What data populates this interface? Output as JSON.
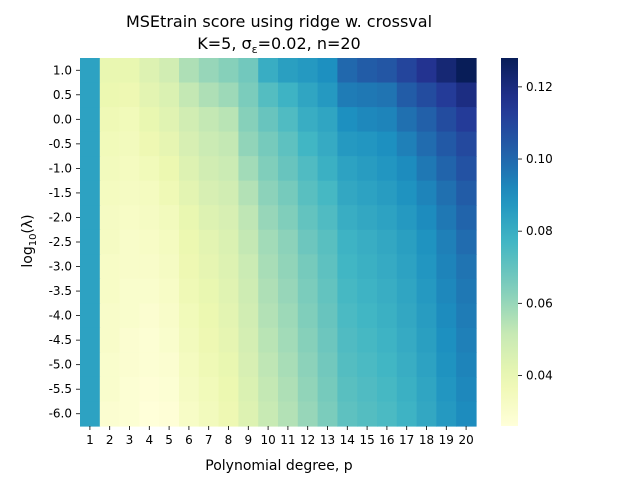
{
  "chart_data": {
    "type": "heatmap",
    "title_line1": "MSEtrain score using ridge w. crossval",
    "title_line2_prefix": "K=5,  σ",
    "title_line2_sub": "ε",
    "title_line2_suffix": "=0.02,  n=20",
    "xlabel": "Polynomial degree, p",
    "ylabel_main": "log",
    "ylabel_sub": "10",
    "ylabel_suffix": "(λ)",
    "x_categories": [
      "1",
      "2",
      "3",
      "4",
      "5",
      "6",
      "7",
      "8",
      "9",
      "10",
      "11",
      "12",
      "13",
      "14",
      "15",
      "16",
      "17",
      "18",
      "19",
      "20"
    ],
    "y_categories": [
      "1.0",
      "0.5",
      "0.0",
      "-0.5",
      "-1.0",
      "-1.5",
      "-2.0",
      "-2.5",
      "-3.0",
      "-3.5",
      "-4.0",
      "-4.5",
      "-5.0",
      "-5.5",
      "-6.0"
    ],
    "colormap": "YlGnBu",
    "vmin": 0.026,
    "vmax": 0.128,
    "colorbar_ticks": [
      "0.04",
      "0.06",
      "0.08",
      "0.10",
      "0.12"
    ],
    "colorbar_tick_values": [
      0.04,
      0.06,
      0.08,
      0.1,
      0.12
    ],
    "values": [
      [
        0.084,
        0.04,
        0.04,
        0.044,
        0.048,
        0.056,
        0.06,
        0.063,
        0.067,
        0.08,
        0.085,
        0.087,
        0.09,
        0.1,
        0.103,
        0.105,
        0.11,
        0.116,
        0.122,
        0.128
      ],
      [
        0.084,
        0.039,
        0.038,
        0.042,
        0.045,
        0.052,
        0.056,
        0.059,
        0.065,
        0.073,
        0.078,
        0.083,
        0.087,
        0.095,
        0.096,
        0.097,
        0.103,
        0.108,
        0.113,
        0.119
      ],
      [
        0.084,
        0.037,
        0.036,
        0.04,
        0.043,
        0.048,
        0.052,
        0.054,
        0.063,
        0.069,
        0.074,
        0.08,
        0.083,
        0.09,
        0.092,
        0.093,
        0.098,
        0.102,
        0.108,
        0.113
      ],
      [
        0.084,
        0.036,
        0.035,
        0.038,
        0.041,
        0.046,
        0.05,
        0.052,
        0.061,
        0.066,
        0.071,
        0.077,
        0.081,
        0.087,
        0.088,
        0.09,
        0.094,
        0.099,
        0.104,
        0.109
      ],
      [
        0.084,
        0.035,
        0.034,
        0.036,
        0.039,
        0.044,
        0.048,
        0.05,
        0.058,
        0.064,
        0.069,
        0.074,
        0.079,
        0.084,
        0.086,
        0.088,
        0.091,
        0.096,
        0.101,
        0.106
      ],
      [
        0.084,
        0.034,
        0.033,
        0.034,
        0.037,
        0.042,
        0.046,
        0.048,
        0.055,
        0.062,
        0.066,
        0.072,
        0.076,
        0.082,
        0.084,
        0.086,
        0.089,
        0.093,
        0.098,
        0.103
      ],
      [
        0.084,
        0.033,
        0.032,
        0.033,
        0.035,
        0.04,
        0.044,
        0.046,
        0.053,
        0.06,
        0.064,
        0.07,
        0.074,
        0.08,
        0.082,
        0.084,
        0.087,
        0.091,
        0.096,
        0.101
      ],
      [
        0.084,
        0.033,
        0.031,
        0.032,
        0.034,
        0.039,
        0.042,
        0.045,
        0.052,
        0.058,
        0.062,
        0.068,
        0.072,
        0.078,
        0.08,
        0.082,
        0.085,
        0.089,
        0.094,
        0.099
      ],
      [
        0.084,
        0.032,
        0.031,
        0.031,
        0.033,
        0.038,
        0.041,
        0.044,
        0.05,
        0.057,
        0.061,
        0.066,
        0.071,
        0.077,
        0.079,
        0.081,
        0.084,
        0.088,
        0.093,
        0.097
      ],
      [
        0.084,
        0.032,
        0.03,
        0.03,
        0.032,
        0.037,
        0.04,
        0.043,
        0.049,
        0.056,
        0.06,
        0.065,
        0.07,
        0.076,
        0.078,
        0.08,
        0.083,
        0.087,
        0.092,
        0.096
      ],
      [
        0.084,
        0.031,
        0.03,
        0.029,
        0.031,
        0.036,
        0.039,
        0.042,
        0.048,
        0.055,
        0.059,
        0.064,
        0.069,
        0.075,
        0.077,
        0.079,
        0.082,
        0.086,
        0.091,
        0.095
      ],
      [
        0.084,
        0.031,
        0.029,
        0.028,
        0.03,
        0.035,
        0.038,
        0.041,
        0.047,
        0.054,
        0.058,
        0.063,
        0.068,
        0.074,
        0.076,
        0.078,
        0.081,
        0.085,
        0.09,
        0.094
      ],
      [
        0.084,
        0.03,
        0.029,
        0.028,
        0.029,
        0.034,
        0.037,
        0.04,
        0.046,
        0.053,
        0.057,
        0.062,
        0.067,
        0.073,
        0.075,
        0.077,
        0.08,
        0.084,
        0.089,
        0.093
      ],
      [
        0.084,
        0.03,
        0.028,
        0.027,
        0.028,
        0.033,
        0.036,
        0.039,
        0.045,
        0.052,
        0.056,
        0.061,
        0.066,
        0.072,
        0.074,
        0.076,
        0.079,
        0.083,
        0.088,
        0.092
      ],
      [
        0.084,
        0.029,
        0.028,
        0.026,
        0.027,
        0.032,
        0.035,
        0.038,
        0.044,
        0.051,
        0.055,
        0.06,
        0.065,
        0.071,
        0.073,
        0.075,
        0.078,
        0.082,
        0.087,
        0.091
      ]
    ]
  }
}
